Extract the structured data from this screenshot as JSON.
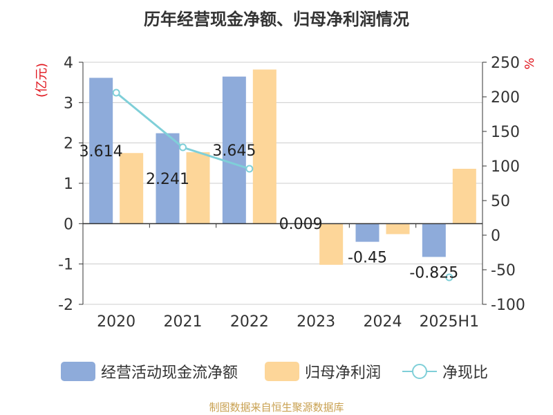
{
  "title": "历年经营现金净额、归母净利润情况",
  "source_text": "制图数据来自恒生聚源数据库",
  "colors": {
    "cashflow": "#8eabda",
    "profit": "#fdd699",
    "ratio": "#7fcfd8",
    "axis_unit": "#e0151d"
  },
  "chart_data": {
    "type": "bar",
    "categories": [
      "2020",
      "2021",
      "2022",
      "2023",
      "2024",
      "2025H1"
    ],
    "y_left": {
      "label": "(亿元)",
      "ylim": [
        -2,
        4
      ],
      "ticks": [
        4,
        3,
        2,
        1,
        0,
        -1,
        -2
      ]
    },
    "y_right": {
      "label": "%",
      "ylim": [
        -100,
        250
      ],
      "ticks": [
        250,
        200,
        150,
        100,
        50,
        0,
        -50,
        -100
      ]
    },
    "grid": true,
    "legend_position": "bottom",
    "series": [
      {
        "name": "经营活动现金流净额",
        "axis": "left",
        "type": "bar",
        "values": [
          3.614,
          2.241,
          3.645,
          0.009,
          -0.45,
          -0.825
        ],
        "labels": [
          "3.614",
          "2.241",
          "3.645",
          "0.009",
          "-0.45",
          "-0.825"
        ]
      },
      {
        "name": "归母净利润",
        "axis": "left",
        "type": "bar",
        "values": [
          1.75,
          1.77,
          3.82,
          -1.02,
          -0.26,
          1.36
        ]
      },
      {
        "name": "净现比",
        "axis": "right",
        "type": "line",
        "values": [
          206,
          127,
          96,
          null,
          null,
          -61
        ]
      }
    ]
  }
}
